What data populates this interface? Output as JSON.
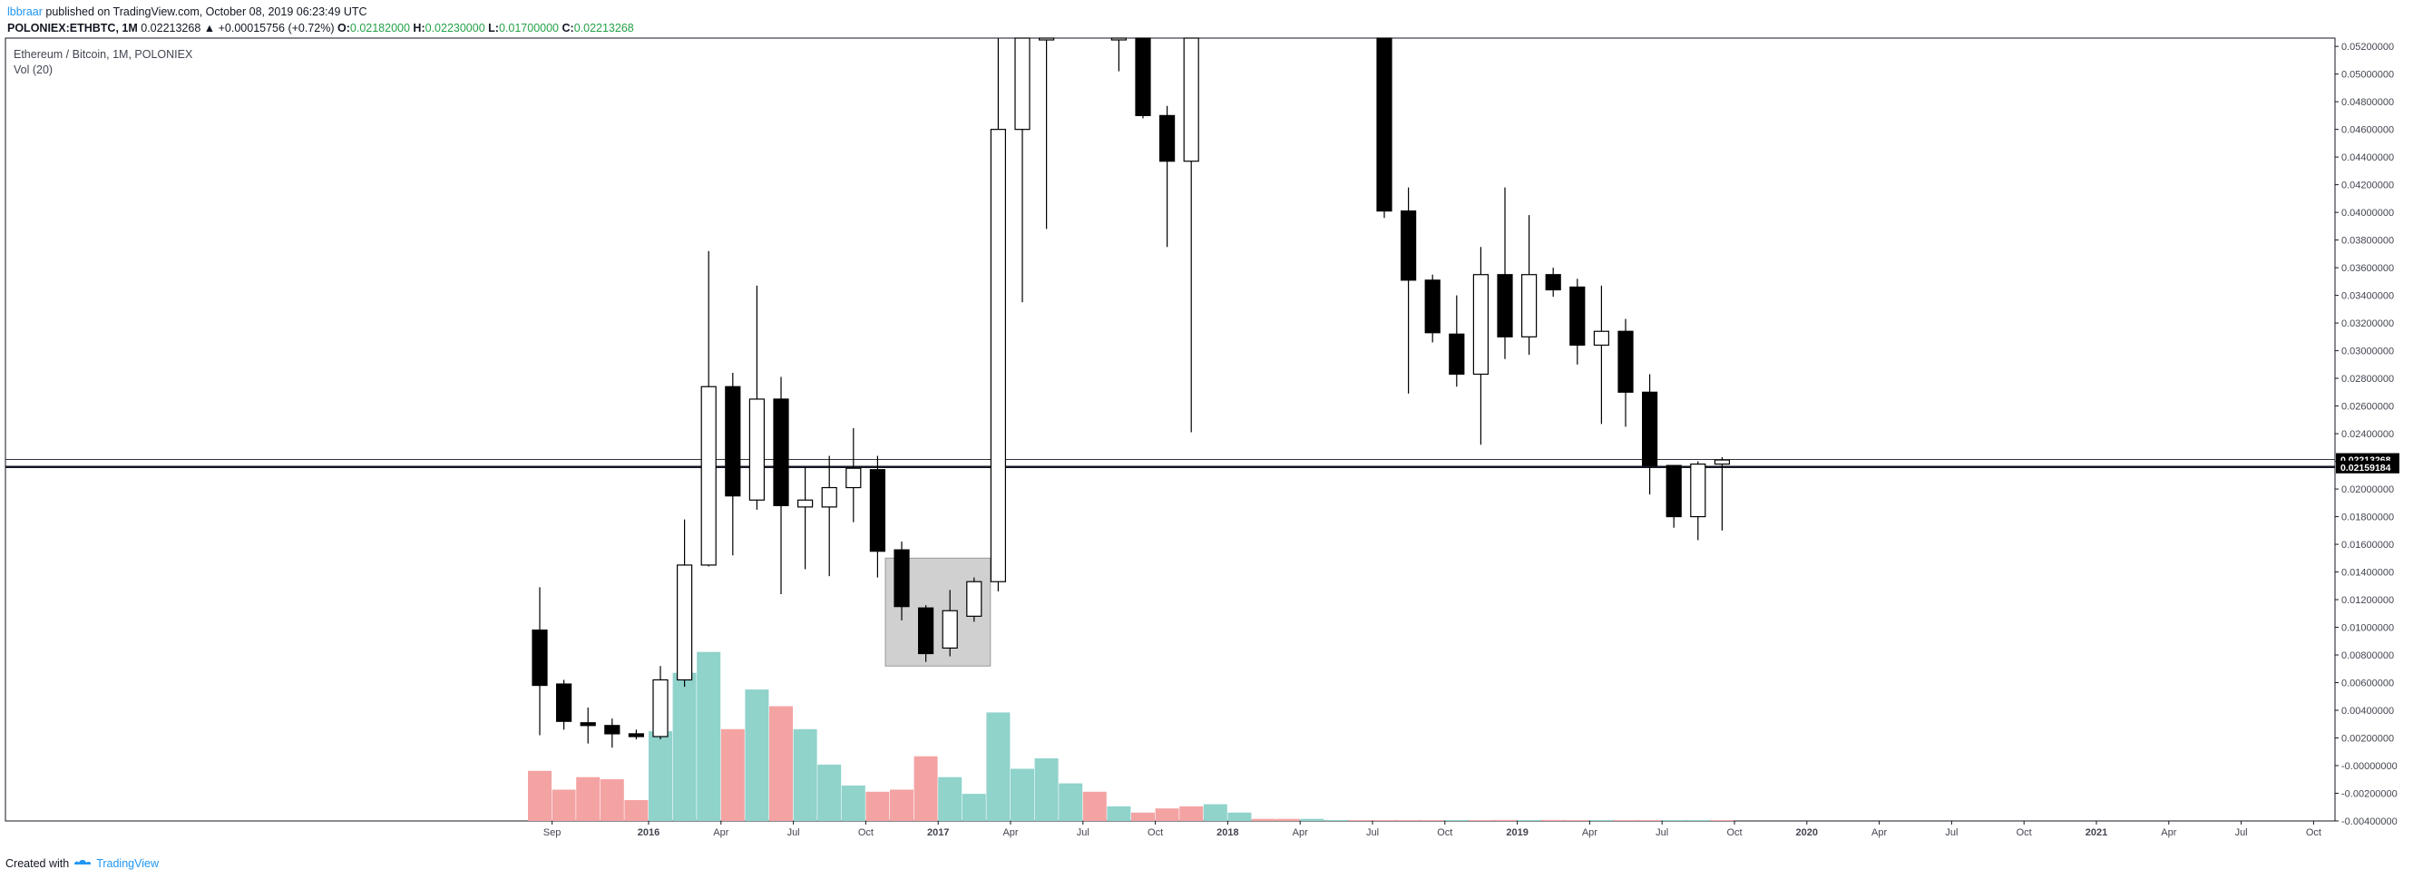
{
  "header": {
    "author": "lbbraar",
    "published_text": "published on TradingView.com, October 08, 2019 06:23:49 UTC",
    "symbol": "POLONIEX:ETHBTC, 1M",
    "last": "0.02213268",
    "change": "▲ +0.00015756 (+0.72%)",
    "o_label": "O:",
    "o_value": "0.02182000",
    "h_label": "H:",
    "h_value": "0.02230000",
    "l_label": "L:",
    "l_value": "0.01700000",
    "c_label": "C:",
    "c_value": "0.02213268"
  },
  "legend": {
    "title": "Ethereum / Bitcoin, 1M, POLONIEX",
    "volume": "Vol (20)"
  },
  "footer": {
    "created_with": "Created with",
    "brand": "TradingView"
  },
  "colors": {
    "up_volume": "#8fd3cb",
    "down_volume": "#f4a3a3",
    "candle_down": "#000000",
    "candle_up": "#ffffff",
    "box_fill": "#c8c8c8",
    "price_tag_bg": "#000000"
  },
  "chart_data": {
    "type": "candlestick",
    "title": "Ethereum / Bitcoin, 1M, POLONIEX",
    "ylim": [
      -0.004,
      0.0526
    ],
    "y_ticks": [
      "0.05200000",
      "0.05000000",
      "0.04800000",
      "0.04600000",
      "0.04400000",
      "0.04200000",
      "0.04000000",
      "0.03800000",
      "0.03600000",
      "0.03400000",
      "0.03200000",
      "0.03000000",
      "0.02800000",
      "0.02600000",
      "0.02400000",
      "0.02200000",
      "0.02000000",
      "0.01800000",
      "0.01600000",
      "0.01400000",
      "0.01200000",
      "0.01000000",
      "0.00800000",
      "0.00600000",
      "0.00400000",
      "0.00200000",
      "-0.00000000",
      "-0.00200000",
      "-0.00400000"
    ],
    "x_ticks": [
      "Sep",
      "2016",
      "Apr",
      "Jul",
      "Oct",
      "2017",
      "Apr",
      "Jul",
      "Oct",
      "2018",
      "Apr",
      "Jul",
      "Oct",
      "2019",
      "Apr",
      "Jul",
      "Oct",
      "2020",
      "Apr",
      "Jul",
      "Oct",
      "2021",
      "Apr",
      "Jul",
      "Oct"
    ],
    "bold_x_ticks": [
      "2016",
      "2017",
      "2018",
      "2019",
      "2020",
      "2021"
    ],
    "candles": [
      {
        "month": "2015-08",
        "o": 0.0098,
        "h": 0.0129,
        "l": 0.0022,
        "c": 0.0058
      },
      {
        "month": "2015-09",
        "o": 0.0059,
        "h": 0.0062,
        "l": 0.0026,
        "c": 0.0032
      },
      {
        "month": "2015-10",
        "o": 0.0031,
        "h": 0.0042,
        "l": 0.0016,
        "c": 0.0029
      },
      {
        "month": "2015-11",
        "o": 0.0029,
        "h": 0.0034,
        "l": 0.0013,
        "c": 0.0023
      },
      {
        "month": "2015-12",
        "o": 0.0023,
        "h": 0.0026,
        "l": 0.0019,
        "c": 0.0021
      },
      {
        "month": "2016-01",
        "o": 0.0021,
        "h": 0.0072,
        "l": 0.0019,
        "c": 0.0062
      },
      {
        "month": "2016-02",
        "o": 0.0062,
        "h": 0.0178,
        "l": 0.0057,
        "c": 0.0145
      },
      {
        "month": "2016-03",
        "o": 0.0145,
        "h": 0.0372,
        "l": 0.0144,
        "c": 0.0274
      },
      {
        "month": "2016-04",
        "o": 0.0274,
        "h": 0.0284,
        "l": 0.0152,
        "c": 0.0195
      },
      {
        "month": "2016-05",
        "o": 0.0192,
        "h": 0.0347,
        "l": 0.0185,
        "c": 0.0265
      },
      {
        "month": "2016-06",
        "o": 0.0265,
        "h": 0.0281,
        "l": 0.0124,
        "c": 0.0188
      },
      {
        "month": "2016-07",
        "o": 0.0187,
        "h": 0.0216,
        "l": 0.0142,
        "c": 0.0192
      },
      {
        "month": "2016-08",
        "o": 0.0187,
        "h": 0.0224,
        "l": 0.0137,
        "c": 0.0201
      },
      {
        "month": "2016-09",
        "o": 0.0201,
        "h": 0.0244,
        "l": 0.0176,
        "c": 0.0215
      },
      {
        "month": "2016-10",
        "o": 0.0214,
        "h": 0.0224,
        "l": 0.0136,
        "c": 0.0155
      },
      {
        "month": "2016-11",
        "o": 0.0156,
        "h": 0.0162,
        "l": 0.0105,
        "c": 0.0115
      },
      {
        "month": "2016-12",
        "o": 0.0114,
        "h": 0.0116,
        "l": 0.0075,
        "c": 0.0081
      },
      {
        "month": "2017-01",
        "o": 0.0085,
        "h": 0.0127,
        "l": 0.0079,
        "c": 0.0112
      },
      {
        "month": "2017-02",
        "o": 0.0108,
        "h": 0.0136,
        "l": 0.0104,
        "c": 0.0133
      },
      {
        "month": "2017-03",
        "o": 0.0133,
        "h": 0.0526,
        "l": 0.0126,
        "c": 0.046
      },
      {
        "month": "2017-04",
        "o": 0.046,
        "h": 0.0526,
        "l": 0.0335,
        "c": 0.0526
      },
      {
        "month": "2017-05",
        "o": 0.0526,
        "h": 0.0526,
        "l": 0.0388,
        "c": 0.0526
      },
      {
        "month": "2017-08",
        "o": 0.0526,
        "h": 0.0526,
        "l": 0.0502,
        "c": 0.0526
      },
      {
        "month": "2017-09",
        "o": 0.0526,
        "h": 0.0526,
        "l": 0.0468,
        "c": 0.047
      },
      {
        "month": "2017-10",
        "o": 0.047,
        "h": 0.0477,
        "l": 0.0375,
        "c": 0.0437
      },
      {
        "month": "2017-11",
        "o": 0.0437,
        "h": 0.0526,
        "l": 0.0241,
        "c": 0.0526
      },
      {
        "month": "2018-07",
        "o": 0.0526,
        "h": 0.0526,
        "l": 0.0396,
        "c": 0.0401
      },
      {
        "month": "2018-08",
        "o": 0.0401,
        "h": 0.0418,
        "l": 0.0269,
        "c": 0.0351
      },
      {
        "month": "2018-09",
        "o": 0.0351,
        "h": 0.0355,
        "l": 0.0306,
        "c": 0.0313
      },
      {
        "month": "2018-10",
        "o": 0.0312,
        "h": 0.034,
        "l": 0.0274,
        "c": 0.0283
      },
      {
        "month": "2018-11",
        "o": 0.0283,
        "h": 0.0375,
        "l": 0.0232,
        "c": 0.0355
      },
      {
        "month": "2018-12",
        "o": 0.0355,
        "h": 0.0418,
        "l": 0.0294,
        "c": 0.031
      },
      {
        "month": "2019-01",
        "o": 0.031,
        "h": 0.0398,
        "l": 0.0297,
        "c": 0.0355
      },
      {
        "month": "2019-02",
        "o": 0.0355,
        "h": 0.036,
        "l": 0.0339,
        "c": 0.0344
      },
      {
        "month": "2019-03",
        "o": 0.0346,
        "h": 0.0352,
        "l": 0.029,
        "c": 0.0304
      },
      {
        "month": "2019-04",
        "o": 0.0304,
        "h": 0.0347,
        "l": 0.0247,
        "c": 0.0314
      },
      {
        "month": "2019-05",
        "o": 0.0314,
        "h": 0.0323,
        "l": 0.0245,
        "c": 0.027
      },
      {
        "month": "2019-06",
        "o": 0.027,
        "h": 0.0283,
        "l": 0.0196,
        "c": 0.0217
      },
      {
        "month": "2019-07",
        "o": 0.0217,
        "h": 0.0217,
        "l": 0.0172,
        "c": 0.018
      },
      {
        "month": "2019-08",
        "o": 0.018,
        "h": 0.022,
        "l": 0.0163,
        "c": 0.0218
      },
      {
        "month": "2019-09",
        "o": 0.0218,
        "h": 0.0223,
        "l": 0.017,
        "c": 0.0221
      }
    ],
    "volume_series_relative": [
      {
        "month": "2015-08",
        "v": 0.24,
        "dir": "down"
      },
      {
        "month": "2015-09",
        "v": 0.15,
        "dir": "down"
      },
      {
        "month": "2015-10",
        "v": 0.21,
        "dir": "down"
      },
      {
        "month": "2015-11",
        "v": 0.2,
        "dir": "down"
      },
      {
        "month": "2015-12",
        "v": 0.1,
        "dir": "down"
      },
      {
        "month": "2016-01",
        "v": 0.43,
        "dir": "up"
      },
      {
        "month": "2016-02",
        "v": 0.71,
        "dir": "up"
      },
      {
        "month": "2016-03",
        "v": 0.81,
        "dir": "up"
      },
      {
        "month": "2016-04",
        "v": 0.44,
        "dir": "down"
      },
      {
        "month": "2016-05",
        "v": 0.63,
        "dir": "up"
      },
      {
        "month": "2016-06",
        "v": 0.55,
        "dir": "down"
      },
      {
        "month": "2016-07",
        "v": 0.44,
        "dir": "up"
      },
      {
        "month": "2016-08",
        "v": 0.27,
        "dir": "up"
      },
      {
        "month": "2016-09",
        "v": 0.17,
        "dir": "up"
      },
      {
        "month": "2016-10",
        "v": 0.14,
        "dir": "down"
      },
      {
        "month": "2016-11",
        "v": 0.15,
        "dir": "down"
      },
      {
        "month": "2016-12",
        "v": 0.31,
        "dir": "down"
      },
      {
        "month": "2017-01",
        "v": 0.21,
        "dir": "up"
      },
      {
        "month": "2017-02",
        "v": 0.13,
        "dir": "up"
      },
      {
        "month": "2017-03",
        "v": 0.52,
        "dir": "up"
      },
      {
        "month": "2017-04",
        "v": 0.25,
        "dir": "up"
      },
      {
        "month": "2017-05",
        "v": 0.3,
        "dir": "up"
      },
      {
        "month": "2017-06",
        "v": 0.18,
        "dir": "up"
      },
      {
        "month": "2017-07",
        "v": 0.14,
        "dir": "down"
      },
      {
        "month": "2017-08",
        "v": 0.07,
        "dir": "up"
      },
      {
        "month": "2017-09",
        "v": 0.04,
        "dir": "down"
      },
      {
        "month": "2017-10",
        "v": 0.06,
        "dir": "down"
      },
      {
        "month": "2017-11",
        "v": 0.07,
        "dir": "down"
      },
      {
        "month": "2017-12",
        "v": 0.08,
        "dir": "up"
      },
      {
        "month": "2018-01",
        "v": 0.04,
        "dir": "up"
      },
      {
        "month": "2018-02",
        "v": 0.01,
        "dir": "down"
      },
      {
        "month": "2018-03",
        "v": 0.01,
        "dir": "down"
      },
      {
        "month": "2018-04",
        "v": 0.01,
        "dir": "up"
      },
      {
        "month": "2018-05",
        "v": 0.004,
        "dir": "up"
      },
      {
        "month": "2018-06",
        "v": 0.003,
        "dir": "down"
      },
      {
        "month": "2018-07",
        "v": 0.003,
        "dir": "down"
      },
      {
        "month": "2018-08",
        "v": 0.003,
        "dir": "down"
      },
      {
        "month": "2018-09",
        "v": 0.004,
        "dir": "down"
      },
      {
        "month": "2018-10",
        "v": 0.003,
        "dir": "up"
      },
      {
        "month": "2018-11",
        "v": 0.004,
        "dir": "down"
      },
      {
        "month": "2018-12",
        "v": 0.005,
        "dir": "down"
      },
      {
        "month": "2019-01",
        "v": 0.004,
        "dir": "up"
      },
      {
        "month": "2019-02",
        "v": 0.005,
        "dir": "down"
      },
      {
        "month": "2019-03",
        "v": 0.003,
        "dir": "down"
      },
      {
        "month": "2019-04",
        "v": 0.003,
        "dir": "up"
      },
      {
        "month": "2019-05",
        "v": 0.004,
        "dir": "down"
      },
      {
        "month": "2019-06",
        "v": 0.003,
        "dir": "down"
      },
      {
        "month": "2019-07",
        "v": 0.003,
        "dir": "up"
      },
      {
        "month": "2019-08",
        "v": 0.003,
        "dir": "up"
      },
      {
        "month": "2019-09",
        "v": 0.003,
        "dir": "down"
      }
    ],
    "horizontal_lines": [
      {
        "price": 0.02213268,
        "label": "0.02213268",
        "style": "thin"
      },
      {
        "price": 0.02159184,
        "label": "0.02159184",
        "style": "thick"
      }
    ],
    "annotation_box": {
      "from": "2016-11",
      "to": "2017-02",
      "y_low": 0.0072,
      "y_high": 0.015
    },
    "grid": false
  }
}
